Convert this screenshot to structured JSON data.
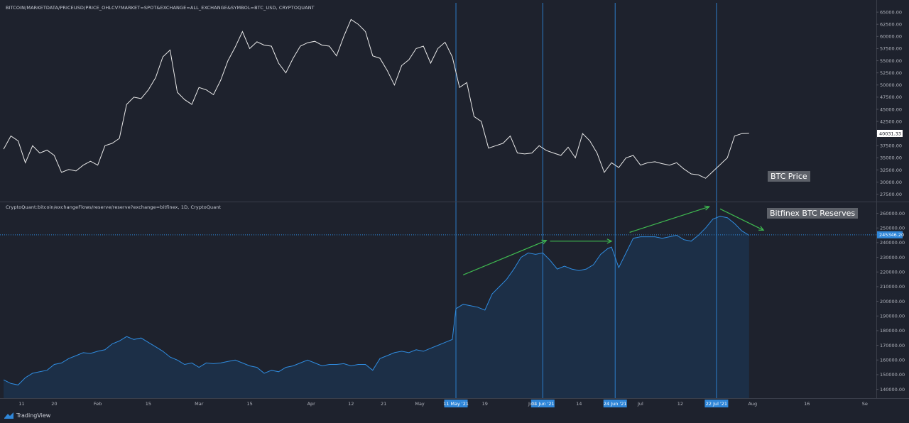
{
  "panes": {
    "price_header": "BITCOIN/MARKETDATA/PRICEUSD/PRICE_OHLCV?MARKET=SPOT&EXCHANGE=ALL_EXCHANGE&SYMBOL=BTC_USD, CRYPTOQUANT",
    "reserve_header": "CryptoQuant:bitcoin/exchangeFlows/reserve/reserve?exchange=bitfinex, 1D, CryptoQuant"
  },
  "annotations": {
    "price_label": "BTC Price",
    "reserve_label": "Bitfinex BTC Reserves"
  },
  "branding": {
    "logo_text": "TradingView",
    "icon": "tradingview-logo-icon"
  },
  "colors": {
    "background": "#1e222d",
    "price_line": "#e8e8e8",
    "reserve_line": "#2f8ce0",
    "reserve_fill": "#1c3a5c",
    "vline": "#2f86d8",
    "arrow": "#3fb950",
    "axis_text": "#b2b5be",
    "badge": "#2f86d8"
  },
  "chart_data": [
    {
      "type": "line",
      "series": [
        {
          "name": "",
          "x": [
            "2021-01-06",
            "2021-01-08",
            "2021-01-10",
            "2021-01-12",
            "2021-01-14",
            "2021-01-16",
            "2021-01-18",
            "2021-01-20",
            "2021-01-22",
            "2021-01-24",
            "2021-01-26",
            "2021-01-28",
            "2021-01-30",
            "2021-02-01",
            "2021-02-03",
            "2021-02-05",
            "2021-02-07",
            "2021-02-09",
            "2021-02-11",
            "2021-02-13",
            "2021-02-15",
            "2021-02-17",
            "2021-02-19",
            "2021-02-21",
            "2021-02-23",
            "2021-02-25",
            "2021-02-27",
            "2021-03-01",
            "2021-03-03",
            "2021-03-05",
            "2021-03-07",
            "2021-03-09",
            "2021-03-11",
            "2021-03-13",
            "2021-03-15",
            "2021-03-17",
            "2021-03-19",
            "2021-03-21",
            "2021-03-23",
            "2021-03-25",
            "2021-03-27",
            "2021-03-29",
            "2021-03-31",
            "2021-04-02",
            "2021-04-04",
            "2021-04-06",
            "2021-04-08",
            "2021-04-10",
            "2021-04-12",
            "2021-04-14",
            "2021-04-16",
            "2021-04-18",
            "2021-04-20",
            "2021-04-22",
            "2021-04-24",
            "2021-04-26",
            "2021-04-28",
            "2021-04-30",
            "2021-05-02",
            "2021-05-04",
            "2021-05-06",
            "2021-05-08",
            "2021-05-10",
            "2021-05-12",
            "2021-05-14",
            "2021-05-16",
            "2021-05-18",
            "2021-05-20",
            "2021-05-22",
            "2021-05-24",
            "2021-05-26",
            "2021-05-28",
            "2021-05-30",
            "2021-06-01",
            "2021-06-03",
            "2021-06-05",
            "2021-06-07",
            "2021-06-09",
            "2021-06-11",
            "2021-06-13",
            "2021-06-15",
            "2021-06-17",
            "2021-06-19",
            "2021-06-21",
            "2021-06-23",
            "2021-06-25",
            "2021-06-27",
            "2021-06-29",
            "2021-07-01",
            "2021-07-03",
            "2021-07-05",
            "2021-07-07",
            "2021-07-09",
            "2021-07-11",
            "2021-07-13",
            "2021-07-15",
            "2021-07-17",
            "2021-07-19",
            "2021-07-21",
            "2021-07-23",
            "2021-07-25",
            "2021-07-27",
            "2021-07-29",
            "2021-07-31"
          ],
          "values": [
            36800,
            39500,
            38500,
            34000,
            37500,
            36000,
            36600,
            35500,
            32000,
            32600,
            32300,
            33500,
            34300,
            33500,
            37500,
            38000,
            39000,
            46000,
            47500,
            47200,
            49000,
            51500,
            55800,
            57200,
            48500,
            47000,
            46000,
            49500,
            49000,
            48000,
            51000,
            55000,
            57800,
            61000,
            57500,
            58900,
            58200,
            58000,
            54500,
            52500,
            55500,
            58000,
            58700,
            59000,
            58200,
            58000,
            56000,
            60000,
            63500,
            62500,
            61000,
            56000,
            55500,
            53000,
            50000,
            54000,
            55200,
            57500,
            58000,
            54500,
            57500,
            58800,
            55800,
            49500,
            50500,
            43500,
            42500,
            37000,
            37500,
            38000,
            39500,
            36000,
            35800,
            36000,
            37500,
            36500,
            36000,
            35500,
            37200,
            35000,
            40000,
            38500,
            36000,
            32000,
            34000,
            33000,
            35000,
            35500,
            33500,
            34000,
            34200,
            33800,
            33500,
            34000,
            32700,
            31700,
            31500,
            30800,
            32200,
            33600,
            35000,
            39500,
            40000,
            40050
          ]
        }
      ],
      "title": "",
      "xlabel": "",
      "ylabel": "",
      "ylim": [
        26000,
        67500
      ],
      "yticks": [
        "67500.00",
        "65000.00",
        "62500.00",
        "60000.00",
        "57500.00",
        "55000.00",
        "52500.00",
        "50000.00",
        "47500.00",
        "45000.00",
        "42500.00",
        "40000.00",
        "37500.00",
        "35000.00",
        "32500.00",
        "30000.00",
        "27500.00"
      ],
      "last_value_label": "40031.33",
      "grid": false
    },
    {
      "type": "area",
      "series": [
        {
          "name": "",
          "x": [
            "2021-01-06",
            "2021-01-08",
            "2021-01-10",
            "2021-01-12",
            "2021-01-14",
            "2021-01-16",
            "2021-01-18",
            "2021-01-20",
            "2021-01-22",
            "2021-01-24",
            "2021-01-26",
            "2021-01-28",
            "2021-01-30",
            "2021-02-01",
            "2021-02-03",
            "2021-02-05",
            "2021-02-07",
            "2021-02-09",
            "2021-02-11",
            "2021-02-13",
            "2021-02-15",
            "2021-02-17",
            "2021-02-19",
            "2021-02-21",
            "2021-02-23",
            "2021-02-25",
            "2021-02-27",
            "2021-03-01",
            "2021-03-03",
            "2021-03-05",
            "2021-03-07",
            "2021-03-09",
            "2021-03-11",
            "2021-03-13",
            "2021-03-15",
            "2021-03-17",
            "2021-03-19",
            "2021-03-21",
            "2021-03-23",
            "2021-03-25",
            "2021-03-27",
            "2021-03-29",
            "2021-03-31",
            "2021-04-02",
            "2021-04-04",
            "2021-04-06",
            "2021-04-08",
            "2021-04-10",
            "2021-04-12",
            "2021-04-14",
            "2021-04-16",
            "2021-04-18",
            "2021-04-20",
            "2021-04-22",
            "2021-04-24",
            "2021-04-26",
            "2021-04-28",
            "2021-04-30",
            "2021-05-02",
            "2021-05-04",
            "2021-05-06",
            "2021-05-08",
            "2021-05-10",
            "2021-05-11",
            "2021-05-13",
            "2021-05-15",
            "2021-05-17",
            "2021-05-19",
            "2021-05-21",
            "2021-05-23",
            "2021-05-25",
            "2021-05-27",
            "2021-05-29",
            "2021-05-31",
            "2021-06-02",
            "2021-06-04",
            "2021-06-06",
            "2021-06-08",
            "2021-06-10",
            "2021-06-12",
            "2021-06-14",
            "2021-06-16",
            "2021-06-18",
            "2021-06-20",
            "2021-06-22",
            "2021-06-23",
            "2021-06-25",
            "2021-06-27",
            "2021-06-29",
            "2021-07-01",
            "2021-07-03",
            "2021-07-05",
            "2021-07-07",
            "2021-07-09",
            "2021-07-11",
            "2021-07-13",
            "2021-07-15",
            "2021-07-17",
            "2021-07-19",
            "2021-07-21",
            "2021-07-23",
            "2021-07-25",
            "2021-07-27",
            "2021-07-29",
            "2021-07-31"
          ],
          "values": [
            146500,
            144000,
            143000,
            148000,
            151000,
            152000,
            153000,
            157000,
            158000,
            161000,
            163000,
            165000,
            164500,
            166000,
            167000,
            171000,
            173000,
            176000,
            174000,
            175000,
            172000,
            169000,
            166000,
            162000,
            160000,
            157000,
            158000,
            155000,
            158000,
            157500,
            158000,
            159000,
            160000,
            158000,
            156000,
            155000,
            151000,
            153000,
            152000,
            155000,
            156000,
            158000,
            160000,
            158000,
            156000,
            157000,
            157000,
            157500,
            156000,
            157000,
            157000,
            153000,
            161000,
            163000,
            165000,
            166000,
            165000,
            167000,
            166000,
            168000,
            170000,
            172000,
            174000,
            195000,
            198000,
            197000,
            196000,
            194000,
            205000,
            210000,
            215000,
            222000,
            230000,
            233000,
            232000,
            233000,
            228000,
            222000,
            224000,
            222000,
            221000,
            222000,
            225000,
            232000,
            236000,
            237000,
            223000,
            233000,
            243000,
            244000,
            244000,
            244000,
            243000,
            244000,
            245000,
            242000,
            241000,
            245000,
            250000,
            256000,
            258000,
            257000,
            253000,
            248000,
            245000
          ],
          "fill": true
        }
      ],
      "title": "",
      "xlabel": "",
      "ylabel": "",
      "ylim": [
        134000,
        268000
      ],
      "yticks": [
        "260000.00",
        "250000.00",
        "240000.00",
        "230000.00",
        "220000.00",
        "210000.00",
        "200000.00",
        "190000.00",
        "180000.00",
        "170000.00",
        "160000.00",
        "150000.00",
        "140000.00"
      ],
      "last_value_label": "245346.20",
      "reference_line": 245346.2,
      "grid": false
    }
  ],
  "x_axis": {
    "ticks": [
      {
        "date": "2021-01-11",
        "label": "11"
      },
      {
        "date": "2021-01-20",
        "label": "20"
      },
      {
        "date": "2021-02-01",
        "label": "Feb"
      },
      {
        "date": "2021-02-15",
        "label": "15"
      },
      {
        "date": "2021-03-01",
        "label": "Mar"
      },
      {
        "date": "2021-03-15",
        "label": "15"
      },
      {
        "date": "2021-04-01",
        "label": "Apr"
      },
      {
        "date": "2021-04-12",
        "label": "12"
      },
      {
        "date": "2021-04-21",
        "label": "21"
      },
      {
        "date": "2021-05-01",
        "label": "May"
      },
      {
        "date": "2021-05-19",
        "label": "19"
      },
      {
        "date": "2021-06-01",
        "label": "Jun"
      },
      {
        "date": "2021-06-14",
        "label": "14"
      },
      {
        "date": "2021-07-01",
        "label": "Jul"
      },
      {
        "date": "2021-07-12",
        "label": "12"
      },
      {
        "date": "2021-08-01",
        "label": "Aug"
      },
      {
        "date": "2021-08-16",
        "label": "16"
      },
      {
        "date": "2021-09-01",
        "label": "Se"
      }
    ],
    "markers": [
      {
        "date": "2021-05-11",
        "label": "11 May '21"
      },
      {
        "date": "2021-06-04",
        "label": "04 Jun '21"
      },
      {
        "date": "2021-06-24",
        "label": "24 Jun '21"
      },
      {
        "date": "2021-07-22",
        "label": "22 Jul '21"
      }
    ],
    "range": [
      "2021-01-05",
      "2021-09-03"
    ]
  }
}
